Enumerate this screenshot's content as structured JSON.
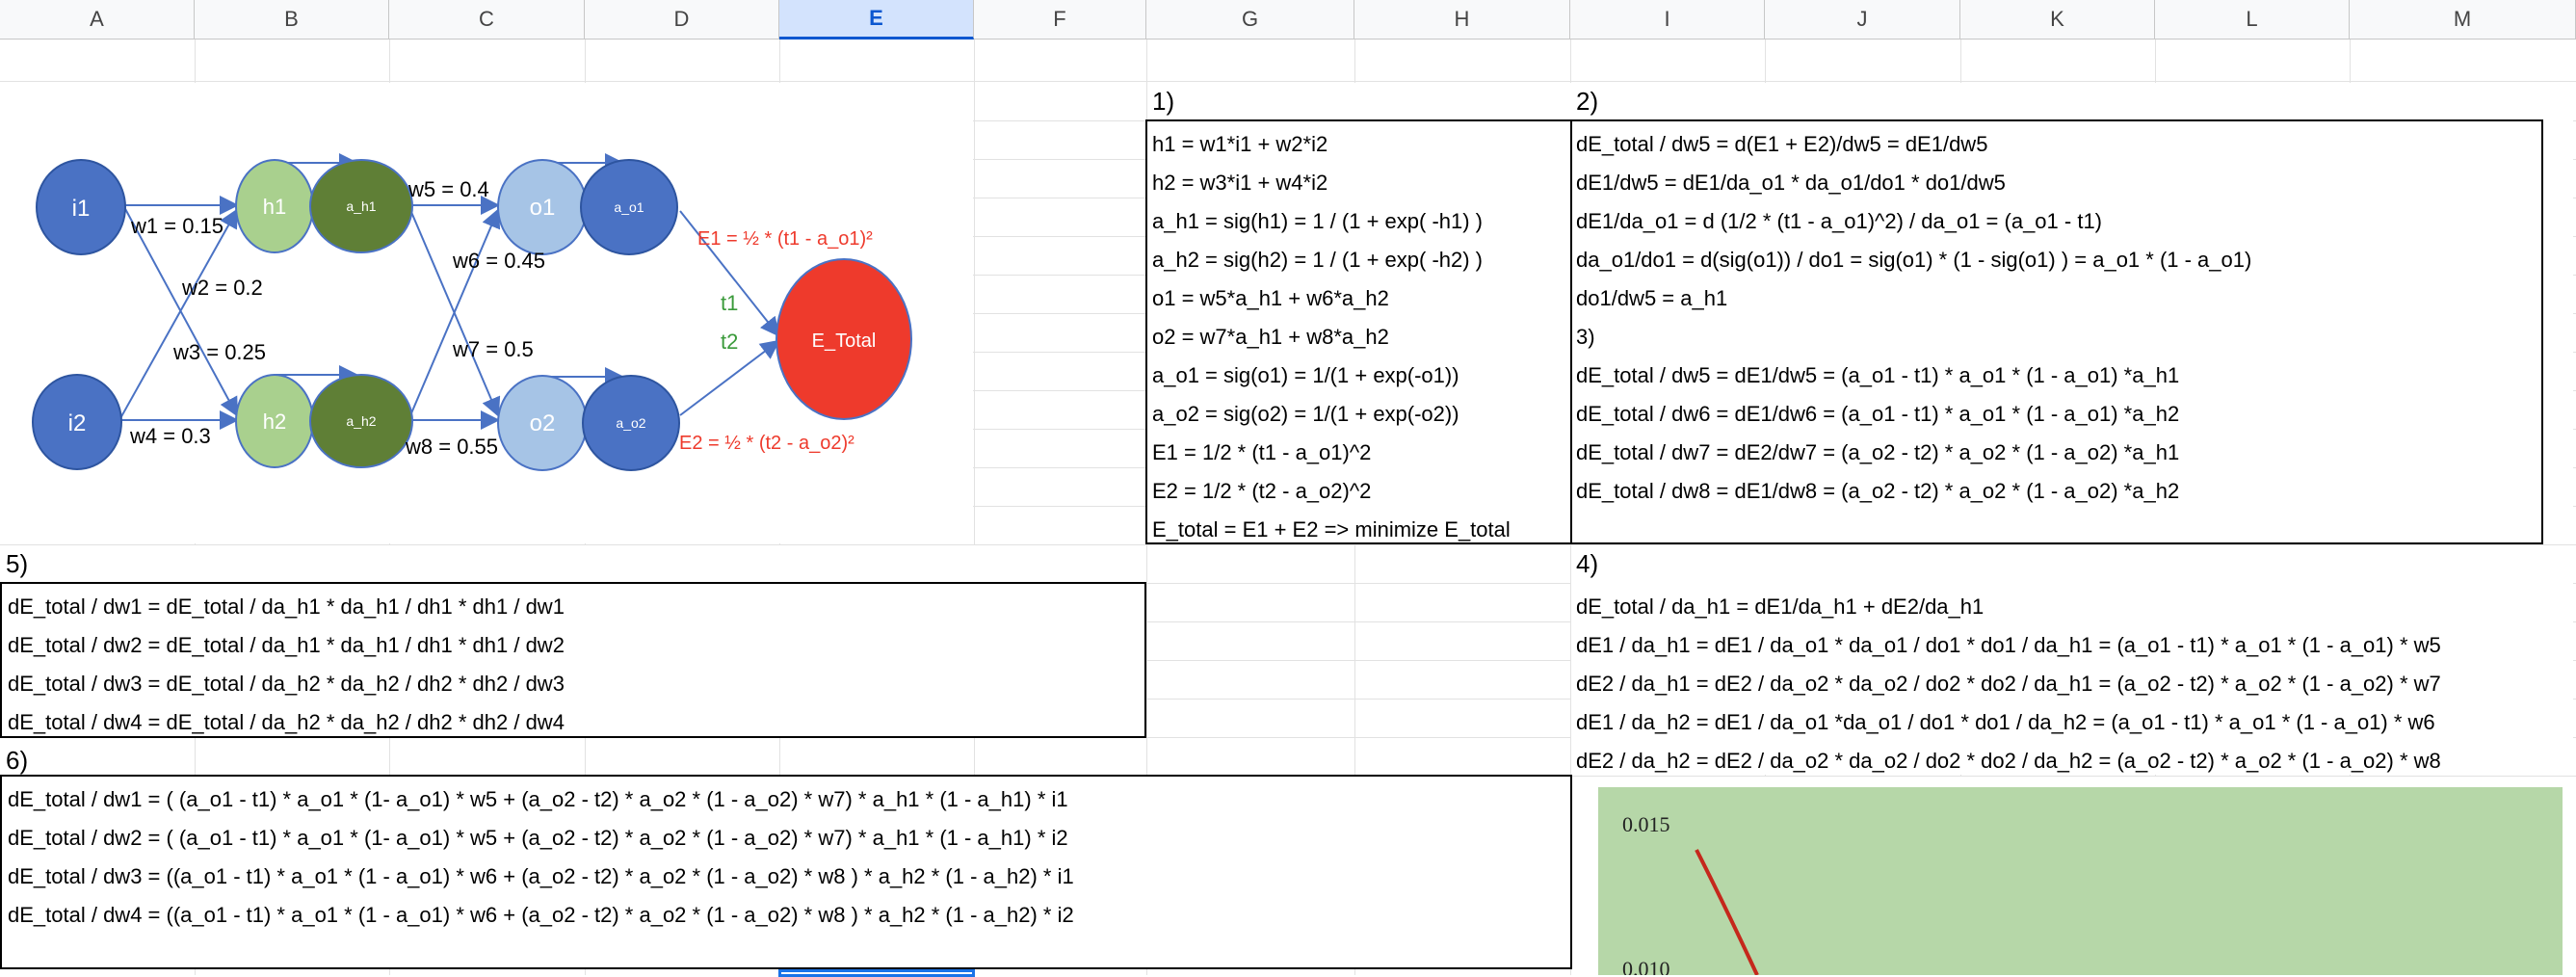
{
  "columns": [
    "A",
    "B",
    "C",
    "D",
    "E",
    "F",
    "G",
    "H",
    "I",
    "J",
    "K",
    "L",
    "M"
  ],
  "selected_column": "E",
  "diagram": {
    "nodes": {
      "i1": "i1",
      "i2": "i2",
      "h1": "h1",
      "h2": "h2",
      "a_h1": "a_h1",
      "a_h2": "a_h2",
      "o1": "o1",
      "o2": "o2",
      "a_o1": "a_o1",
      "a_o2": "a_o2",
      "etotal": "E_Total"
    },
    "weights": {
      "w1": "w1 = 0.15",
      "w2": "w2 = 0.2",
      "w3": "w3 = 0.25",
      "w4": "w4 = 0.3",
      "w5": "w5 = 0.4",
      "w6": "w6 = 0.45",
      "w7": "w7 = 0.5",
      "w8": "w8 = 0.55"
    },
    "e1": "E1 = ½ * (t1 - a_o1)²",
    "e2": "E2 = ½ * (t2 - a_o2)²",
    "t1": "t1",
    "t2": "t2",
    "colors": {
      "input": "#4a72c4",
      "hidden": "#a9d08e",
      "hidden_act": "#5f7f36",
      "output": "#a6c4e6",
      "output_act": "#4a72c4",
      "error": "#ee3a2c",
      "red_text": "#ee3a2c",
      "green_text": "#3a9a3a"
    }
  },
  "section1": {
    "label": "1)",
    "rows": [
      "h1 = w1*i1 + w2*i2",
      "h2 = w3*i1 + w4*i2",
      "a_h1 = sig(h1) = 1 / (1 + exp( -h1) )",
      "a_h2 = sig(h2) = 1 / (1 + exp( -h2) )",
      "o1 = w5*a_h1 + w6*a_h2",
      "o2 = w7*a_h1 + w8*a_h2",
      "a_o1 = sig(o1) = 1/(1 + exp(-o1))",
      "a_o2 = sig(o2) = 1/(1 + exp(-o2))",
      "E1 = 1/2 * (t1 - a_o1)^2",
      "E2 = 1/2 * (t2 - a_o2)^2",
      "E_total = E1 + E2 => minimize E_total"
    ]
  },
  "section2": {
    "label": "2)",
    "rows": [
      "dE_total / dw5 = d(E1 + E2)/dw5 = dE1/dw5",
      "dE1/dw5 = dE1/da_o1 * da_o1/do1 * do1/dw5",
      "dE1/da_o1 = d (1/2 * (t1 - a_o1)^2) / da_o1 = (a_o1 - t1)",
      "da_o1/do1 = d(sig(o1)) / do1 = sig(o1) * (1 - sig(o1) ) = a_o1 * (1 - a_o1)",
      "do1/dw5 = a_h1"
    ]
  },
  "section3": {
    "label": "3)",
    "rows": [
      "dE_total / dw5 = dE1/dw5 = (a_o1 - t1) * a_o1 * (1 - a_o1) *a_h1",
      "dE_total / dw6 = dE1/dw6 = (a_o1 - t1) * a_o1 * (1 - a_o1) *a_h2",
      "dE_total / dw7 = dE2/dw7 = (a_o2 - t2) * a_o2 * (1 - a_o2) *a_h1",
      "dE_total / dw8 = dE1/dw8 = (a_o2 - t2) * a_o2 * (1 - a_o2) *a_h2"
    ]
  },
  "section4": {
    "label": "4)",
    "rows": [
      "dE_total / da_h1 = dE1/da_h1 + dE2/da_h1",
      "dE1 / da_h1 = dE1 / da_o1 * da_o1 / do1 * do1 / da_h1 = (a_o1 - t1) * a_o1 * (1 - a_o1) * w5",
      "dE2 / da_h1 = dE2 / da_o2 * da_o2 / do2 * do2 / da_h1 = (a_o2 - t2) * a_o2 * (1 - a_o2) * w7",
      "dE1 / da_h2 = dE1 / da_o1 *da_o1 / do1 * do1 / da_h2 = (a_o1 - t1) * a_o1 * (1 - a_o1) * w6",
      "dE2 / da_h2 = dE2 / da_o2 * da_o2 / do2 * do2 / da_h2 = (a_o2 - t2) * a_o2 * (1 - a_o2) * w8"
    ]
  },
  "section5": {
    "label": "5)",
    "rows": [
      "dE_total / dw1 = dE_total / da_h1 * da_h1 / dh1 * dh1 / dw1",
      "dE_total / dw2 = dE_total / da_h1 * da_h1 / dh1 * dh1 / dw2",
      "dE_total / dw3 = dE_total / da_h2 * da_h2 / dh2 * dh2 / dw3",
      "dE_total / dw4 = dE_total / da_h2 * da_h2 / dh2 * dh2 / dw4"
    ]
  },
  "section6": {
    "label": "6)",
    "rows": [
      "dE_total / dw1 = ( (a_o1 - t1) * a_o1 * (1- a_o1) * w5 +  (a_o2 - t2) * a_o2 * (1 - a_o2) * w7) * a_h1 * (1 - a_h1) * i1",
      "dE_total / dw2 = ( (a_o1 - t1) * a_o1 * (1- a_o1) * w5  + (a_o2 - t2) * a_o2 * (1 - a_o2) * w7) * a_h1 * (1 - a_h1) * i2",
      "dE_total / dw3 = ((a_o1 - t1) * a_o1 * (1 - a_o1) * w6 + (a_o2 - t2) * a_o2 * (1 - a_o2) * w8 ) * a_h2 * (1 - a_h2) * i1",
      "dE_total / dw4 = ((a_o1 - t1) * a_o1 * (1 - a_o1) * w6 + (a_o2 - t2) * a_o2 * (1 - a_o2) * w8 ) * a_h2 * (1 - a_h2) * i2"
    ]
  },
  "chart": {
    "background": "#b6d7a8",
    "line_color": "#c5281c",
    "y_tick_top": "0.015",
    "y_tick_mid": "0.010"
  }
}
